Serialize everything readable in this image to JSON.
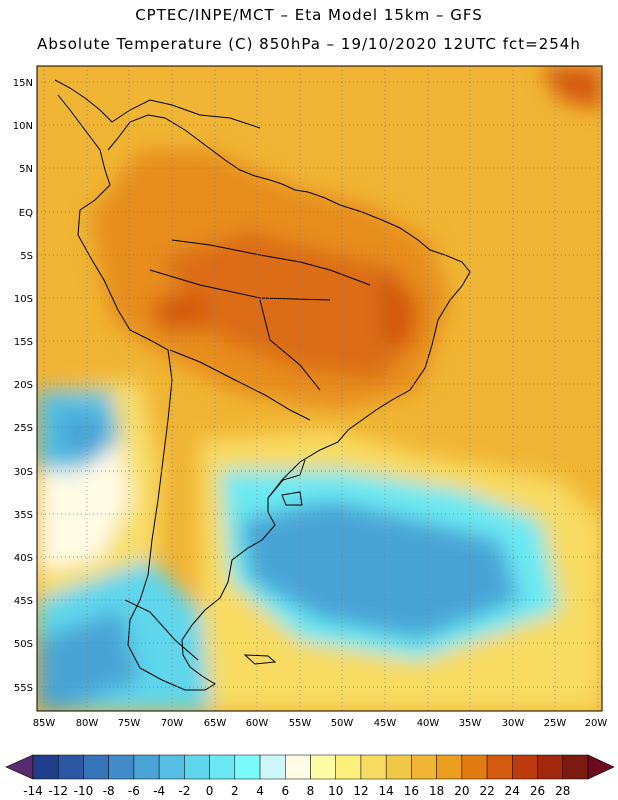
{
  "header": {
    "line1": "CPTEC/INPE/MCT –  Eta Model 15km – GFS",
    "line2": "Absolute Temperature (C) 850hPa – 19/10/2020 12UTC fct=254h"
  },
  "map": {
    "lat_labels": [
      "15N",
      "10N",
      "5N",
      "EQ",
      "5S",
      "10S",
      "15S",
      "20S",
      "25S",
      "30S",
      "35S",
      "40S",
      "45S",
      "50S",
      "55S"
    ],
    "lon_labels": [
      "85W",
      "80W",
      "75W",
      "70W",
      "65W",
      "60W",
      "55W",
      "50W",
      "45W",
      "40W",
      "35W",
      "30W",
      "25W",
      "20W"
    ],
    "grid": "dotted",
    "land_outline_color": "#000000"
  },
  "colorbar": {
    "tick_labels": [
      "-14",
      "-12",
      "-10",
      "-8",
      "-6",
      "-4",
      "-2",
      "0",
      "2",
      "4",
      "6",
      "8",
      "10",
      "12",
      "14",
      "16",
      "18",
      "20",
      "22",
      "24",
      "26",
      "28"
    ],
    "colors": [
      "#1f3f8a",
      "#2c58a3",
      "#3675b8",
      "#3f8cc8",
      "#4aa4d6",
      "#55bfe3",
      "#5fd6ec",
      "#6ae9f2",
      "#7bfbfb",
      "#cff7fb",
      "#fffbe5",
      "#fffca6",
      "#fdf07d",
      "#f8dc62",
      "#f2c946",
      "#f0b534",
      "#ec9f1f",
      "#e27c12",
      "#d45a0d",
      "#be3b0b",
      "#a2280c",
      "#7c1a12"
    ],
    "under_color": "#5a2a6f",
    "over_color": "#6d0a1f",
    "units": "C"
  }
}
